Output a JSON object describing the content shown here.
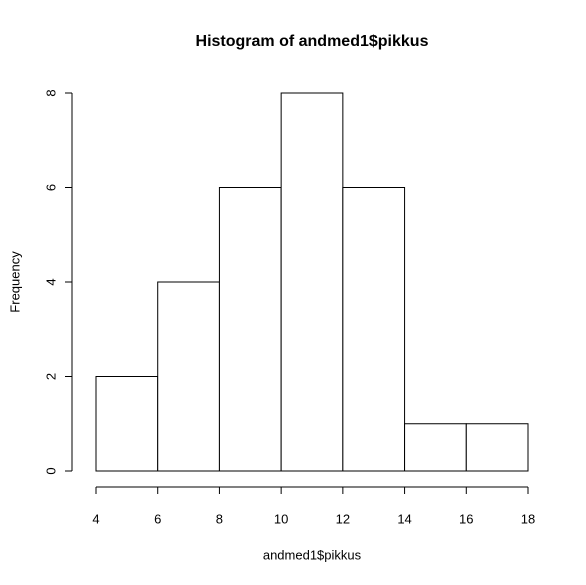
{
  "chart_data": {
    "type": "histogram",
    "title": "Histogram of andmed1$pikkus",
    "x_label": "andmed1$pikkus",
    "y_label": "Frequency",
    "bins": [
      4,
      6,
      8,
      10,
      12,
      14,
      16,
      18
    ],
    "values": [
      2,
      4,
      6,
      8,
      6,
      1,
      1
    ],
    "color": "#ffffff",
    "xlim": [
      4,
      18
    ],
    "xticks": [
      4,
      6,
      8,
      10,
      12,
      14,
      16,
      18
    ],
    "ylim": [
      0,
      8
    ],
    "yticks": [
      0,
      2,
      4,
      6,
      8
    ]
  }
}
